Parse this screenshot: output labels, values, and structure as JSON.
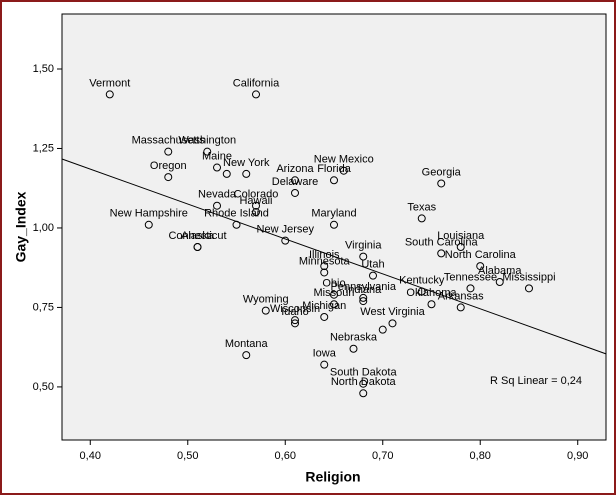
{
  "chart_data": {
    "type": "scatter",
    "x_label": "Religion",
    "y_label": "Gay_Index",
    "annotation": "R Sq Linear = 0,24",
    "labels": [
      "Vermont",
      "California",
      "Massachusetts",
      "Washington",
      "Maine",
      "Oregon",
      "New York",
      null,
      "Arizona",
      "New Mexico",
      "Georgia",
      "Nevada",
      "Colorado",
      "Florida",
      "Hawaii",
      "Delaware",
      "Texas",
      "Rhode Island",
      "New Hampshire",
      "Connecticut",
      "New Jersey",
      "Maryland",
      "Louisiana",
      "Alaska",
      "Illinois",
      "Virginia",
      "North Carolina",
      "Utah",
      "South Carolina",
      "Minnesota",
      "Alabama",
      "Pennsylvania",
      "Kentucky",
      "Tennessee",
      "Mississippi",
      "Wyoming",
      "Ohio",
      "Indiana",
      "Oklahoma",
      "Arkansas",
      "Wisconsin",
      "Idaho",
      "Missouri",
      "Michigan",
      "West Virginia",
      null,
      "Montana",
      "Iowa",
      "Nebraska",
      "South Dakota",
      "North Dakota"
    ],
    "x": [
      0.42,
      0.57,
      0.48,
      0.52,
      0.53,
      0.48,
      0.56,
      0.54,
      0.61,
      0.66,
      0.76,
      0.53,
      0.57,
      0.65,
      0.57,
      0.61,
      0.74,
      0.55,
      0.46,
      0.51,
      0.6,
      0.65,
      0.78,
      0.51,
      0.64,
      0.68,
      0.8,
      0.69,
      0.76,
      0.64,
      0.82,
      0.68,
      0.74,
      0.79,
      0.85,
      0.58,
      0.65,
      0.68,
      0.75,
      0.78,
      0.61,
      0.61,
      0.65,
      0.64,
      0.71,
      0.7,
      0.56,
      0.64,
      0.67,
      0.68,
      0.68
    ],
    "values": [
      1.42,
      1.42,
      1.24,
      1.24,
      1.19,
      1.16,
      1.17,
      1.17,
      1.15,
      1.18,
      1.14,
      1.07,
      1.07,
      1.15,
      1.05,
      1.11,
      1.03,
      1.01,
      1.01,
      0.94,
      0.96,
      1.01,
      0.94,
      0.94,
      0.88,
      0.91,
      0.88,
      0.85,
      0.92,
      0.86,
      0.83,
      0.78,
      0.8,
      0.81,
      0.81,
      0.74,
      0.79,
      0.77,
      0.76,
      0.75,
      0.71,
      0.7,
      0.76,
      0.72,
      0.7,
      0.68,
      0.6,
      0.57,
      0.62,
      0.51,
      0.48
    ],
    "fit_line": {
      "x": [
        0.371,
        0.929
      ],
      "y": [
        1.217,
        0.604
      ]
    },
    "xlim": [
      0.371,
      0.929
    ],
    "ylim": [
      0.333,
      1.673
    ],
    "xticks": [
      {
        "value": 0.4,
        "label": "0,40"
      },
      {
        "value": 0.5,
        "label": "0,50"
      },
      {
        "value": 0.6,
        "label": "0,60"
      },
      {
        "value": 0.7,
        "label": "0,70"
      },
      {
        "value": 0.8,
        "label": "0,80"
      },
      {
        "value": 0.9,
        "label": "0,90"
      }
    ],
    "yticks": [
      {
        "value": 0.5,
        "label": "0,50"
      },
      {
        "value": 0.75,
        "label": "0,75"
      },
      {
        "value": 1.0,
        "label": "1,00"
      },
      {
        "value": 1.25,
        "label": "1,25"
      },
      {
        "value": 1.5,
        "label": "1,50"
      }
    ],
    "grid": false
  }
}
